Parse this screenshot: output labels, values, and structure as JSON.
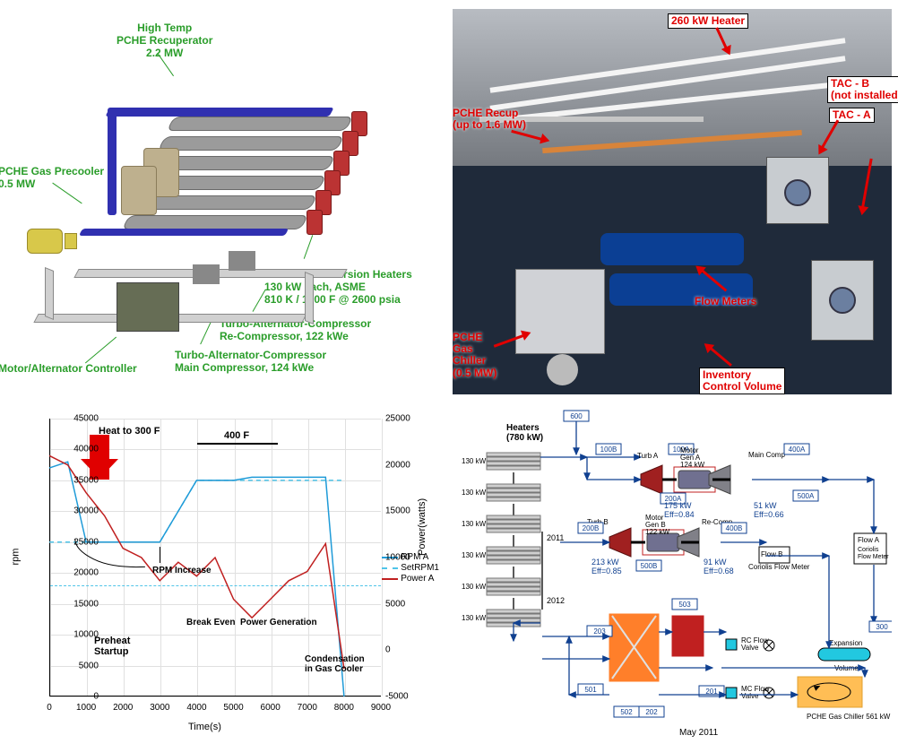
{
  "tl": {
    "callouts": {
      "recuperator": "High Temp\nPCHE Recuperator\n2.2 MW",
      "precooler": "PCHE Gas Precooler\n0.5 MW",
      "controller": "Motor/Alternator Controller",
      "main_comp": "Turbo-Alternator-Compressor\nMain Compressor, 124 kWe",
      "re_comp": "Turbo-Alternator-Compressor\nRe-Compressor, 122 kWe",
      "heaters": "Electrical Immersion Heaters\n130 kW each, ASME\n810 K / 1000 F @ 2600 psia"
    },
    "colors": {
      "callout": "#2a9d2a",
      "pipe": "#3030b0",
      "tube": "#9b9b9b",
      "head": "#bb3333",
      "pump": "#d8c84a"
    }
  },
  "tr": {
    "labels": {
      "heater": "260 kW Heater",
      "recup": "PCHE Recup\n(up to 1.6 MW)",
      "tac_b": "TAC - B\n(not installed)",
      "tac_a": "TAC - A",
      "flow": "Flow Meters",
      "chiller": "PCHE\nGas\nChiller\n(0.5 MW)",
      "inventory": "Inventory\nControl Volume"
    },
    "label_color": "#e00000",
    "piping_white": "#f4f4f4",
    "skid_blue": "#0b3f94"
  },
  "bl": {
    "type": "line",
    "x": [
      0,
      500,
      1000,
      1500,
      2000,
      2500,
      3000,
      3500,
      4000,
      4500,
      5000,
      5500,
      6000,
      6500,
      7000,
      7500,
      8000
    ],
    "rpm_a": [
      37000,
      38000,
      25000,
      25000,
      25000,
      25000,
      25000,
      30000,
      35000,
      35000,
      35000,
      35500,
      35500,
      35500,
      35500,
      35500,
      0
    ],
    "setrpm1": [
      25000,
      25000,
      25000,
      25000,
      25000,
      25000,
      25000,
      30000,
      35000,
      35000,
      35000,
      35000,
      35000,
      35000,
      35000,
      35000,
      35000
    ],
    "power_a": [
      21000,
      20000,
      17000,
      14500,
      11000,
      10000,
      7500,
      9500,
      8000,
      10000,
      5500,
      3500,
      5500,
      7500,
      8500,
      11500,
      -2000
    ],
    "xlim": [
      0,
      9000
    ],
    "xtick_step": 1000,
    "ylim": [
      0,
      45000
    ],
    "ytick_step": 5000,
    "y2lim": [
      -5000,
      25000
    ],
    "y2tick_step": 5000,
    "xlabel": "Time(s)",
    "ylabel": "rpm",
    "y2label": "Power(watts)",
    "series_colors": {
      "rpm_a": "#1f9bd8",
      "setrpm1": "#4fc4e8",
      "power_a": "#c02020"
    },
    "grid_color": "#e0e0e0",
    "annotations": {
      "heat300": "Heat to 300 F",
      "heat400": "400 F",
      "rpm_inc": "RPM Increase",
      "preheat": "Preheat\nStartup",
      "breakeven": "Break Even",
      "powergen": "Power Generation",
      "condens": "Condensation\nin Gas Cooler"
    },
    "legend": [
      "RPM A",
      "SetRPM1",
      "Power A"
    ]
  },
  "br": {
    "title": "May 2011",
    "heaters_label": "Heaters\n(780 kW)",
    "heater_rows": [
      "130 kW",
      "130 kW",
      "130 kW",
      "130 kW",
      "130 kW",
      "130 kW"
    ],
    "heater_years": [
      "2011",
      "2012"
    ],
    "nodes": {
      "turb_a": "Turb A",
      "turb_b": "Turb B",
      "gen_a": "Motor\nGen A\n124 kW",
      "gen_b": "Motor\nGen B\n122 kW",
      "main_comp": "Main Comp",
      "re_comp": "Re-Comp",
      "flow_a": "Flow A\nCoriolis\nFlow Meter",
      "flow_b": "Flow B\nCoriolis\nFlow Meter",
      "rc_valve": "RC Flow\nValve",
      "mc_valve": "MC Flow\nValve",
      "chiller": "PCHE Gas Chiller\n561 kW",
      "expansion": "Expansion\nVolume"
    },
    "station_ids": [
      "600",
      "100B",
      "100A",
      "200A",
      "400A",
      "200B",
      "500A",
      "500B",
      "400B",
      "203",
      "503",
      "201",
      "202",
      "501",
      "502",
      "300"
    ],
    "perf": {
      "turb_a_pwr": "175 kW",
      "turb_a_eff": "Eff=0.84",
      "turb_b_pwr": "213 kW",
      "turb_b_eff": "Eff=0.85",
      "maincomp_pwr": "51 kW",
      "maincomp_eff": "Eff=0.66",
      "recomp_pwr": "91 kW",
      "recomp_eff": "Eff=0.68"
    },
    "colors": {
      "line": "#104090",
      "hx_orange": "#ff7f2a",
      "hx_red": "#c02020",
      "cyan": "#22c8e0",
      "turbine": "#a02020",
      "gen": "#707090"
    }
  }
}
